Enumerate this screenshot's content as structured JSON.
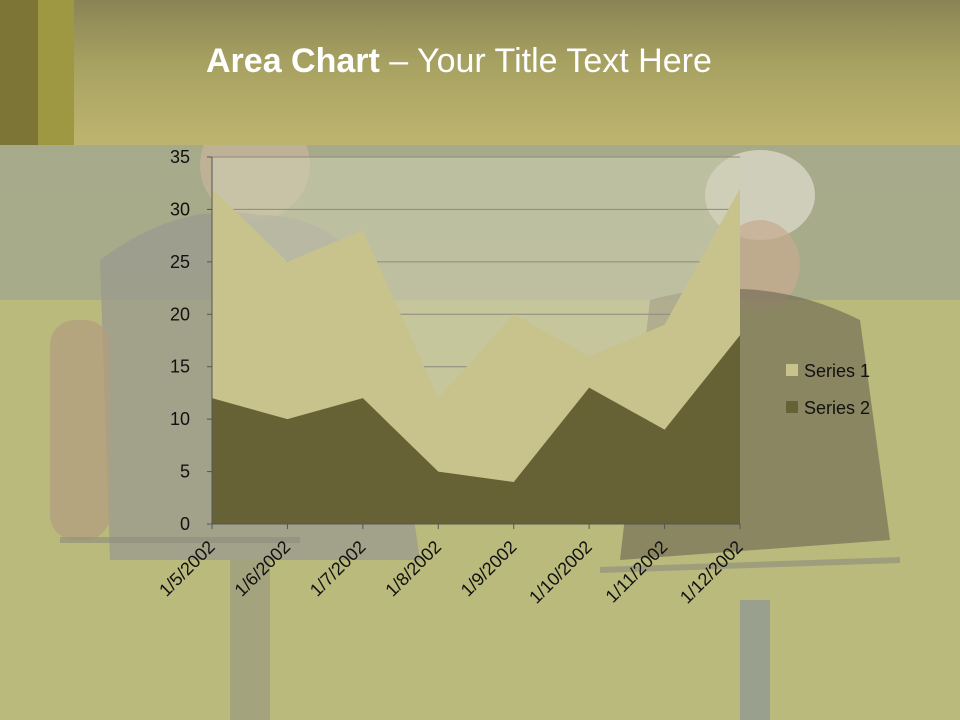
{
  "slide": {
    "title_bold": "Area Chart",
    "title_rest": " – Your Title Text Here"
  },
  "colors": {
    "series1": "#c8c38d",
    "series2": "#666236",
    "header_top": "#8a8455",
    "header_bottom": "#bdb56f"
  },
  "chart_data": {
    "type": "area",
    "title": "",
    "xlabel": "",
    "ylabel": "",
    "categories": [
      "1/5/2002",
      "1/6/2002",
      "1/7/2002",
      "1/8/2002",
      "1/9/2002",
      "1/10/2002",
      "1/11/2002",
      "1/12/2002"
    ],
    "series": [
      {
        "name": "Series 1",
        "values": [
          32,
          25,
          28,
          12,
          20,
          16,
          19,
          32
        ]
      },
      {
        "name": "Series 2",
        "values": [
          12,
          10,
          12,
          5,
          4,
          13,
          9,
          18
        ]
      }
    ],
    "ylim": [
      0,
      35
    ],
    "yticks": [
      0,
      5,
      10,
      15,
      20,
      25,
      30,
      35
    ],
    "grid": true,
    "legend": "right"
  }
}
